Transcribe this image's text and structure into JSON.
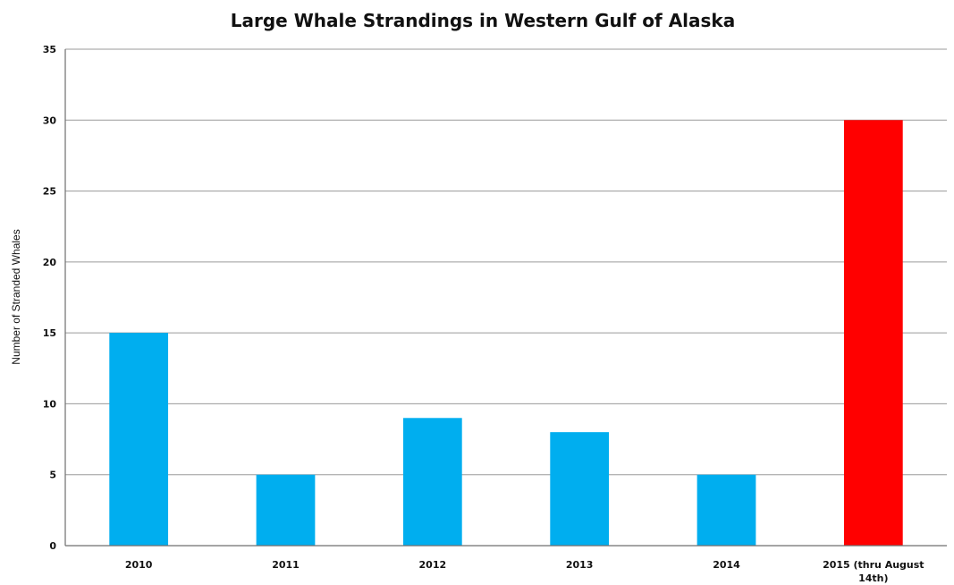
{
  "chart_data": {
    "type": "bar",
    "title": "Large Whale Strandings in Western Gulf of Alaska",
    "xlabel": "",
    "ylabel": "Number of Stranded Whales",
    "categories": [
      "2010",
      "2011",
      "2012",
      "2013",
      "2014",
      "2015 (thru August 14th)"
    ],
    "category_lines": [
      [
        "2010"
      ],
      [
        "2011"
      ],
      [
        "2012"
      ],
      [
        "2013"
      ],
      [
        "2014"
      ],
      [
        "2015 (thru August",
        "14th)"
      ]
    ],
    "values": [
      15,
      5,
      9,
      8,
      5,
      30
    ],
    "bar_colors": [
      "#00aeef",
      "#00aeef",
      "#00aeef",
      "#00aeef",
      "#00aeef",
      "#ff0000"
    ],
    "ylim": [
      0,
      35
    ],
    "yticks": [
      0,
      5,
      10,
      15,
      20,
      25,
      30,
      35
    ],
    "grid": true,
    "legend": "none"
  }
}
